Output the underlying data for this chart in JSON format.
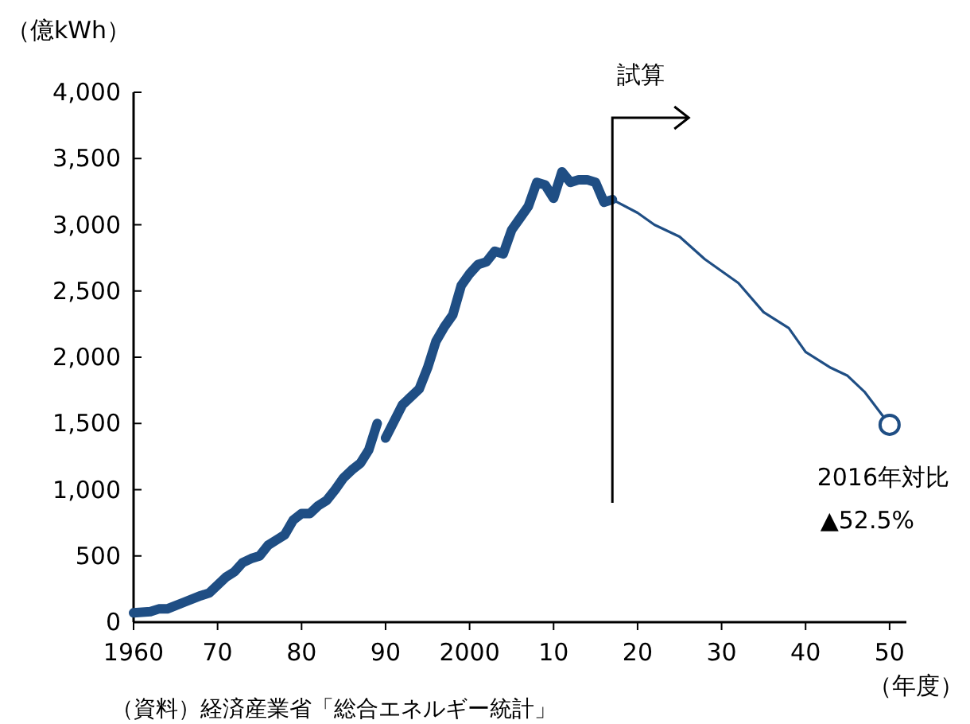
{
  "chart_data": {
    "type": "line",
    "ylabel": "（億kWh）",
    "xlabel": "（年度）",
    "xlim": [
      1960,
      2052
    ],
    "ylim": [
      0,
      4000
    ],
    "xticks": [
      {
        "value": 1960,
        "label": "1960"
      },
      {
        "value": 1970,
        "label": "70"
      },
      {
        "value": 1980,
        "label": "80"
      },
      {
        "value": 1990,
        "label": "90"
      },
      {
        "value": 2000,
        "label": "2000"
      },
      {
        "value": 2010,
        "label": "10"
      },
      {
        "value": 2020,
        "label": "20"
      },
      {
        "value": 2030,
        "label": "30"
      },
      {
        "value": 2040,
        "label": "40"
      },
      {
        "value": 2050,
        "label": "50"
      }
    ],
    "yticks": [
      {
        "value": 0,
        "label": "0"
      },
      {
        "value": 500,
        "label": "500"
      },
      {
        "value": 1000,
        "label": "1,000"
      },
      {
        "value": 1500,
        "label": "1,500"
      },
      {
        "value": 2000,
        "label": "2,000"
      },
      {
        "value": 2500,
        "label": "2,500"
      },
      {
        "value": 3000,
        "label": "3,000"
      },
      {
        "value": 3500,
        "label": "3,500"
      },
      {
        "value": 4000,
        "label": "4,000"
      }
    ],
    "grid": false,
    "series": [
      {
        "color": "#1f4e84",
        "x": [
          1960,
          1962,
          1963,
          1964,
          1966,
          1968,
          1969,
          1970,
          1971,
          1972,
          1973,
          1974,
          1975,
          1976,
          1977,
          1978,
          1979,
          1980,
          1981,
          1982,
          1983,
          1984,
          1985,
          1986,
          1987,
          1988,
          1989
        ],
        "values": [
          70,
          80,
          100,
          100,
          150,
          200,
          220,
          280,
          340,
          380,
          450,
          480,
          500,
          580,
          620,
          660,
          770,
          820,
          820,
          880,
          920,
          1000,
          1090,
          1150,
          1200,
          1300,
          1500
        ]
      },
      {
        "color": "#1f4e84",
        "x": [
          1990,
          1992,
          1994,
          1995,
          1996,
          1997,
          1998,
          1999,
          2000,
          2001,
          2002,
          2003,
          2004,
          2005,
          2006,
          2007,
          2008,
          2009,
          2010,
          2011,
          2012,
          2013,
          2014,
          2015,
          2016,
          2017
        ],
        "values": [
          1390,
          1640,
          1760,
          1920,
          2120,
          2230,
          2320,
          2540,
          2630,
          2700,
          2720,
          2800,
          2780,
          2960,
          3050,
          3140,
          3320,
          3300,
          3200,
          3400,
          3320,
          3340,
          3340,
          3320,
          3170,
          3190
        ]
      },
      {
        "color": "#1f4e84",
        "x": [
          2017,
          2020,
          2022,
          2025,
          2028,
          2030,
          2032,
          2035,
          2038,
          2040,
          2043,
          2045,
          2047,
          2050
        ],
        "values": [
          3190,
          3090,
          3000,
          2910,
          2740,
          2650,
          2560,
          2340,
          2220,
          2040,
          1920,
          1860,
          1740,
          1490
        ]
      },
      {
        "type": "scatter",
        "color": "#1f4e84",
        "marker": "circle",
        "x": [
          2050
        ],
        "values": [
          1490
        ]
      }
    ],
    "ref_lines": [
      {
        "axis": "x",
        "value": 2017,
        "label": "試算",
        "color": "#000000"
      }
    ],
    "annotations": [
      {
        "text": "2016年対比\n▲52.5%",
        "x": 2050,
        "y": 1490
      },
      "（資料）経済産業省「総合エネルギー統計」"
    ]
  }
}
